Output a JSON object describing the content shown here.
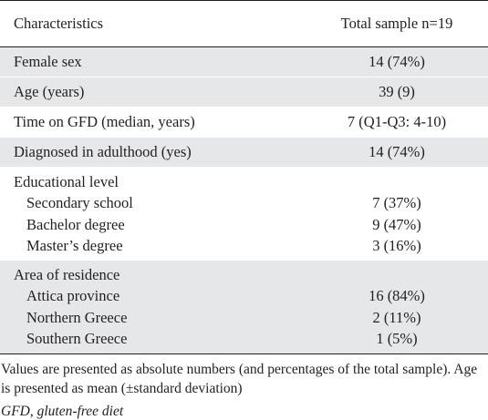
{
  "table": {
    "header": {
      "col1": "Characteristics",
      "col2": "Total sample n=19"
    },
    "rows": [
      {
        "label": "Female sex",
        "value": "14 (74%)"
      },
      {
        "label": "Age (years)",
        "value": "39 (9)"
      },
      {
        "label": "Time on GFD (median, years)",
        "value": "7 (Q1-Q3: 4-10)"
      },
      {
        "label": "Diagnosed in adulthood (yes)",
        "value": "14 (74%)"
      }
    ],
    "education": {
      "title": "Educational level",
      "items": [
        {
          "label": "Secondary school",
          "value": "7 (37%)"
        },
        {
          "label": "Bachelor degree",
          "value": "9 (47%)"
        },
        {
          "label": "Master’s degree",
          "value": "3 (16%)"
        }
      ]
    },
    "residence": {
      "title": "Area of residence",
      "items": [
        {
          "label": "Attica province",
          "value": "16 (84%)"
        },
        {
          "label": "Northern Greece",
          "value": "2 (11%)"
        },
        {
          "label": "Southern Greece",
          "value": "1 (5%)"
        }
      ]
    }
  },
  "footnote": "Values are presented as absolute numbers (and percentages of the total sample). Age is presented as mean (±standard deviation)",
  "abbreviation": "GFD, gluten-free diet"
}
